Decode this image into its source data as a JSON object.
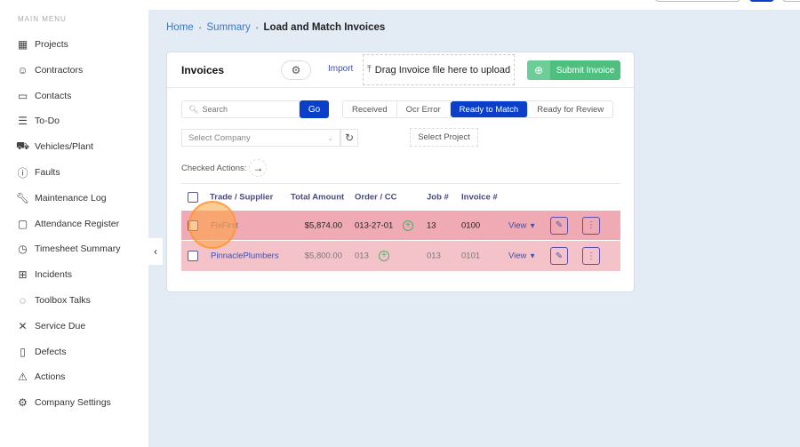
{
  "sidebar": {
    "heading": "MAIN MENU",
    "items": [
      {
        "label": "Projects",
        "icon": "building-icon"
      },
      {
        "label": "Contractors",
        "icon": "worker-icon"
      },
      {
        "label": "Contacts",
        "icon": "contact-card-icon"
      },
      {
        "label": "To-Do",
        "icon": "checklist-icon"
      },
      {
        "label": "Vehicles/Plant",
        "icon": "truck-icon"
      },
      {
        "label": "Faults",
        "icon": "alert-circle-icon"
      },
      {
        "label": "Maintenance Log",
        "icon": "wrench-icon"
      },
      {
        "label": "Attendance Register",
        "icon": "calendar-icon"
      },
      {
        "label": "Timesheet Summary",
        "icon": "clock-icon"
      },
      {
        "label": "Incidents",
        "icon": "first-aid-icon"
      },
      {
        "label": "Toolbox Talks",
        "icon": "chat-bubbles-icon"
      },
      {
        "label": "Service Due",
        "icon": "tools-icon"
      },
      {
        "label": "Defects",
        "icon": "document-x-icon"
      },
      {
        "label": "Actions",
        "icon": "warning-icon"
      },
      {
        "label": "Company Settings",
        "icon": "gear-icon"
      }
    ]
  },
  "breadcrumb": {
    "home": "Home",
    "summary": "Summary",
    "current": "Load and Match Invoices"
  },
  "card": {
    "title": "Invoices",
    "import": "Import",
    "drop": "Drag Invoice file here to upload",
    "submit": "Submit Invoice"
  },
  "filters": {
    "search_placeholder": "Search",
    "go": "Go",
    "tabs": [
      "Received",
      "Ocr Error",
      "Ready to Match",
      "Ready for Review"
    ],
    "active_tab": "Ready to Match",
    "company_placeholder": "Select Company",
    "project": "Select Project",
    "checked_actions": "Checked Actions:"
  },
  "table": {
    "headers": [
      "Trade / Supplier",
      "Total Amount",
      "Order / CC",
      "Job #",
      "Invoice #"
    ],
    "rows": [
      {
        "supplier": "FixFirst",
        "amount": "$5,874.00",
        "order": "013-27-01",
        "job": "13",
        "invoice": "0100",
        "view": "View"
      },
      {
        "supplier": "PinnaclePlumbers",
        "amount": "$5,800.00",
        "order": "013",
        "job": "013",
        "invoice": "0101",
        "view": "View"
      }
    ]
  },
  "colors": {
    "primary": "#0a3fc9",
    "success": "#4fbf80",
    "row_highlight": "#efaab4",
    "row_light": "#f4c3ca"
  }
}
